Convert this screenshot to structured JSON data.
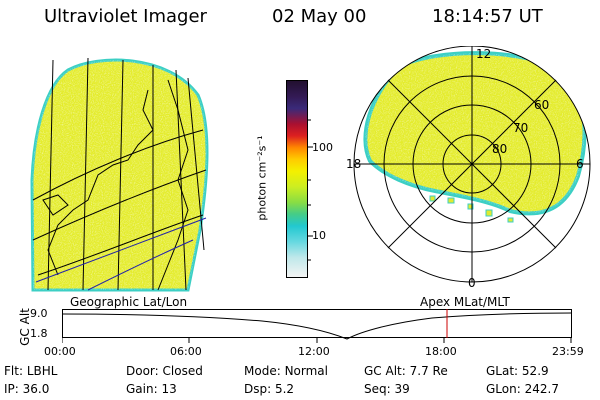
{
  "header": {
    "instrument": "Ultraviolet Imager",
    "date": "02 May 00",
    "time": "18:14:57 UT"
  },
  "colors": {
    "aurora_fill": "#e8ef2a",
    "aurora_edge": "#38d0c0",
    "grid_line": "#000000",
    "coast_line": "#2222aa",
    "marker": "#cc0000"
  },
  "colorbar": {
    "unit_label": "photon cm⁻²s⁻¹",
    "ticks": [
      "100",
      "10"
    ],
    "scale": "log"
  },
  "polar_plot": {
    "lat_labels": [
      "60",
      "70",
      "80"
    ],
    "mlt_labels": {
      "top": "12",
      "left": "18",
      "right": "6",
      "bottom": "0"
    }
  },
  "timeline": {
    "left_title": "Geographic Lat/Lon",
    "right_title": "Apex MLat/MLT",
    "ylabel": "GC Alt",
    "y_ticks": [
      "9.0",
      "1.8"
    ],
    "x_ticks": [
      "00:00",
      "06:00",
      "12:00",
      "18:00",
      "23:59"
    ],
    "marker_time": "18:15"
  },
  "info": {
    "row1": [
      {
        "label": "Flt:",
        "value": "LBHL"
      },
      {
        "label": "Door:",
        "value": "Closed"
      },
      {
        "label": "Mode:",
        "value": "Normal"
      },
      {
        "label": "GC Alt:",
        "value": "7.7 Re"
      },
      {
        "label": "GLat:",
        "value": "52.9"
      }
    ],
    "row2": [
      {
        "label": "IP:",
        "value": "36.0"
      },
      {
        "label": "Gain:",
        "value": "13"
      },
      {
        "label": "Dsp:",
        "value": "5.2"
      },
      {
        "label": "Seq:",
        "value": "39"
      },
      {
        "label": "GLon:",
        "value": "242.7"
      }
    ]
  }
}
